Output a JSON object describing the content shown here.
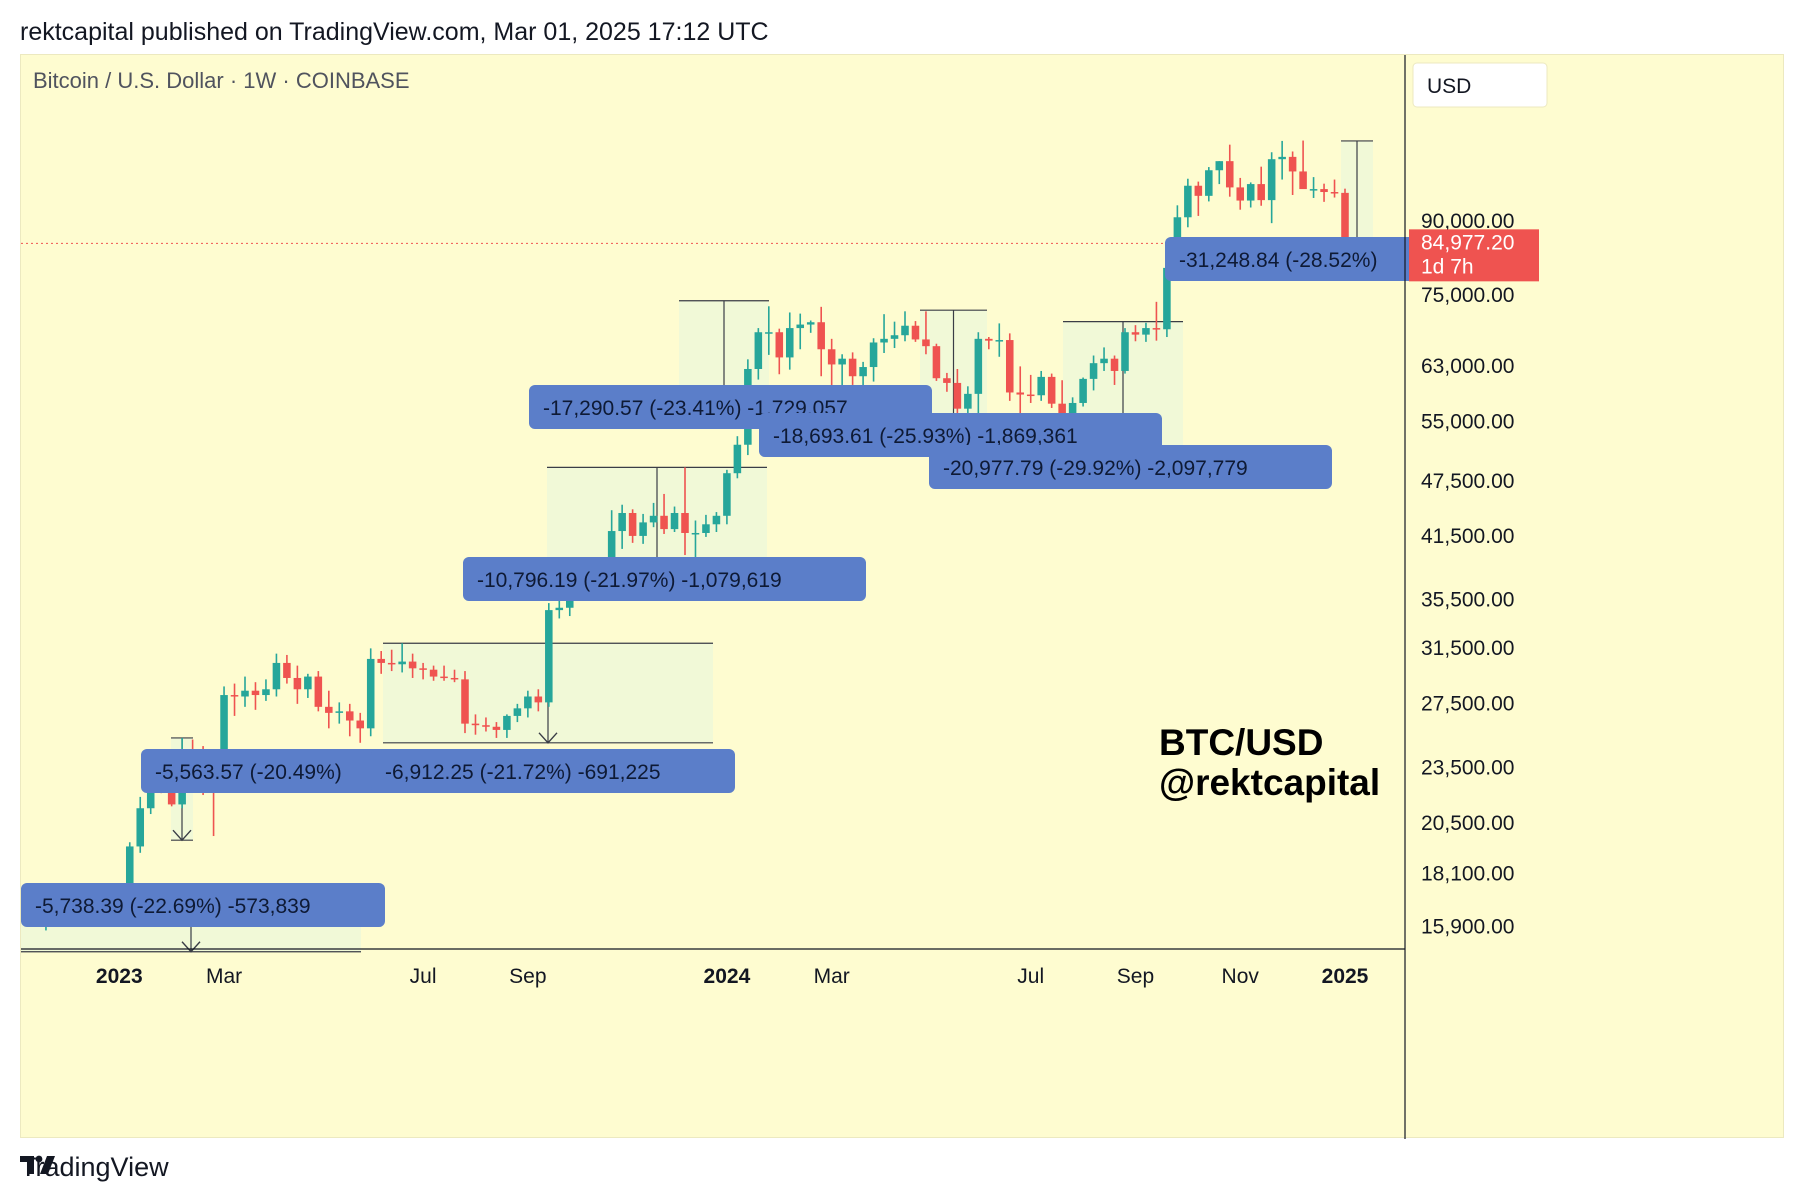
{
  "header": {
    "published": "rektcapital published on TradingView.com, Mar 01, 2025 17:12 UTC"
  },
  "footer": {
    "brand": "TradingView"
  },
  "colors": {
    "bg": "#fefcd0",
    "up": "#26a69a",
    "down": "#ef5350",
    "label_bg": "#5b7ec9",
    "label_text": "#0e1a35",
    "price_tag": "#ef5350"
  },
  "chart_data": {
    "type": "candlestick",
    "title": "Bitcoin / U.S. Dollar · 1W · COINBASE",
    "currency_button": "USD",
    "y_scale": "log",
    "ylim": [
      15000,
      135000
    ],
    "y_ticks": [
      {
        "value": 90000,
        "label": "90,000.00"
      },
      {
        "value": 75000,
        "label": "75,000.00"
      },
      {
        "value": 63000,
        "label": "63,000.00"
      },
      {
        "value": 55000,
        "label": "55,000.00"
      },
      {
        "value": 47500,
        "label": "47,500.00"
      },
      {
        "value": 41500,
        "label": "41,500.00"
      },
      {
        "value": 35500,
        "label": "35,500.00"
      },
      {
        "value": 31500,
        "label": "31,500.00"
      },
      {
        "value": 27500,
        "label": "27,500.00"
      },
      {
        "value": 23500,
        "label": "23,500.00"
      },
      {
        "value": 20500,
        "label": "20,500.00"
      },
      {
        "value": 18100,
        "label": "18,100.00"
      },
      {
        "value": 15900,
        "label": "15,900.00"
      }
    ],
    "x_ticks": [
      {
        "week": 9,
        "label": "2023",
        "bold": true
      },
      {
        "week": 19,
        "label": "Mar",
        "bold": false
      },
      {
        "week": 38,
        "label": "Jul",
        "bold": false
      },
      {
        "week": 48,
        "label": "Sep",
        "bold": false
      },
      {
        "week": 67,
        "label": "2024",
        "bold": true
      },
      {
        "week": 77,
        "label": "Mar",
        "bold": false
      },
      {
        "week": 96,
        "label": "Jul",
        "bold": false
      },
      {
        "week": 106,
        "label": "Sep",
        "bold": false
      },
      {
        "week": 116,
        "label": "Nov",
        "bold": false
      },
      {
        "week": 126,
        "label": "2025",
        "bold": true
      }
    ],
    "last_price": {
      "value": 84977.2,
      "label": "84,977.20",
      "countdown": "1d 7h"
    },
    "candles": [
      [
        16800,
        17200,
        16300,
        16500
      ],
      [
        16500,
        16900,
        16000,
        16200
      ],
      [
        16200,
        16800,
        15700,
        16500
      ],
      [
        16500,
        17100,
        16300,
        16900
      ],
      [
        16900,
        17300,
        16500,
        16800
      ],
      [
        16800,
        17000,
        16400,
        16600
      ],
      [
        16600,
        17200,
        16200,
        16900
      ],
      [
        16900,
        17500,
        16600,
        17100
      ],
      [
        17100,
        17400,
        16700,
        16800
      ],
      [
        16800,
        17300,
        16400,
        16700
      ],
      [
        16700,
        19500,
        16600,
        19300
      ],
      [
        19300,
        21800,
        19000,
        21200
      ],
      [
        21200,
        23200,
        20900,
        23000
      ],
      [
        23000,
        23800,
        22000,
        22700
      ],
      [
        22700,
        23500,
        21300,
        21400
      ],
      [
        21400,
        25200,
        21200,
        24400
      ],
      [
        24400,
        25100,
        23600,
        24100
      ],
      [
        24100,
        24700,
        21900,
        22400
      ],
      [
        22400,
        23500,
        19800,
        22300
      ],
      [
        22300,
        28600,
        22200,
        28000
      ],
      [
        28000,
        28800,
        26600,
        27900
      ],
      [
        27900,
        29300,
        27200,
        28300
      ],
      [
        28300,
        28900,
        27000,
        28000
      ],
      [
        28000,
        29100,
        27600,
        28400
      ],
      [
        28400,
        31000,
        27900,
        30300
      ],
      [
        30300,
        30900,
        28800,
        29200
      ],
      [
        29200,
        30100,
        27400,
        28400
      ],
      [
        28400,
        29500,
        27800,
        29300
      ],
      [
        29300,
        29700,
        26900,
        27200
      ],
      [
        27200,
        28300,
        25800,
        26800
      ],
      [
        26800,
        27500,
        26100,
        26900
      ],
      [
        26900,
        27400,
        25300,
        26300
      ],
      [
        26300,
        26800,
        24900,
        25800
      ],
      [
        25800,
        31400,
        25300,
        30600
      ],
      [
        30600,
        31200,
        29500,
        30300
      ],
      [
        30300,
        31300,
        29700,
        30200
      ],
      [
        30200,
        31800,
        29600,
        30400
      ],
      [
        30400,
        31000,
        29200,
        29900
      ],
      [
        29900,
        30300,
        29100,
        29800
      ],
      [
        29800,
        30100,
        29000,
        29300
      ],
      [
        29300,
        30100,
        29000,
        29200
      ],
      [
        29200,
        29800,
        28900,
        29100
      ],
      [
        29100,
        29700,
        25500,
        26100
      ],
      [
        26100,
        26700,
        25400,
        26000
      ],
      [
        26000,
        26500,
        25600,
        25900
      ],
      [
        25900,
        26200,
        25200,
        25700
      ],
      [
        25700,
        26700,
        25200,
        26600
      ],
      [
        26600,
        27400,
        26200,
        27100
      ],
      [
        27100,
        28300,
        26500,
        27900
      ],
      [
        27900,
        28400,
        26900,
        27500
      ],
      [
        27500,
        35100,
        27200,
        34500
      ],
      [
        34500,
        35900,
        33800,
        34700
      ],
      [
        34700,
        37900,
        34000,
        37400
      ],
      [
        37400,
        38500,
        35500,
        36200
      ],
      [
        36200,
        38200,
        35800,
        37700
      ],
      [
        37700,
        38800,
        37300,
        38300
      ],
      [
        38300,
        44100,
        37600,
        41900
      ],
      [
        41900,
        44700,
        40100,
        43800
      ],
      [
        43800,
        44200,
        40700,
        41400
      ],
      [
        41400,
        43700,
        40600,
        42800
      ],
      [
        42800,
        44900,
        42300,
        43500
      ],
      [
        43500,
        45900,
        41600,
        42100
      ],
      [
        42100,
        44500,
        41800,
        43800
      ],
      [
        43800,
        49000,
        39500,
        41700
      ],
      [
        41700,
        43000,
        38500,
        41700
      ],
      [
        41700,
        43600,
        41300,
        42600
      ],
      [
        42600,
        43900,
        41800,
        43500
      ],
      [
        43500,
        48700,
        42600,
        48300
      ],
      [
        48300,
        52900,
        47700,
        51800
      ],
      [
        51800,
        63900,
        50500,
        62400
      ],
      [
        62400,
        69000,
        60800,
        68300
      ],
      [
        68300,
        72800,
        64600,
        68300
      ],
      [
        68300,
        68900,
        61600,
        64200
      ],
      [
        64200,
        71700,
        62300,
        69000
      ],
      [
        69000,
        71500,
        65500,
        69600
      ],
      [
        69600,
        70300,
        68200,
        70000
      ],
      [
        70000,
        72700,
        61300,
        65500
      ],
      [
        65500,
        67200,
        59600,
        63100
      ],
      [
        63100,
        64700,
        56800,
        64000
      ],
      [
        64000,
        65000,
        60000,
        61300
      ],
      [
        61300,
        63500,
        59800,
        62700
      ],
      [
        62700,
        67300,
        60500,
        66600
      ],
      [
        66600,
        71400,
        64900,
        67200
      ],
      [
        67200,
        70100,
        65700,
        67800
      ],
      [
        67800,
        71900,
        66800,
        69400
      ],
      [
        69400,
        70200,
        66700,
        67100
      ],
      [
        67100,
        71900,
        64700,
        66000
      ],
      [
        66000,
        66400,
        60600,
        61000
      ],
      [
        61000,
        61800,
        59000,
        60300
      ],
      [
        60300,
        62400,
        55000,
        56600
      ],
      [
        56600,
        59800,
        53600,
        58700
      ],
      [
        58700,
        68300,
        55900,
        67200
      ],
      [
        67200,
        67500,
        65500,
        66900
      ],
      [
        66900,
        69800,
        64300,
        67000
      ],
      [
        67000,
        68100,
        57700,
        58900
      ],
      [
        58900,
        62800,
        49100,
        58600
      ],
      [
        58600,
        61500,
        57400,
        58500
      ],
      [
        58500,
        62100,
        57700,
        61200
      ],
      [
        61200,
        61700,
        56700,
        57300
      ],
      [
        57300,
        60700,
        52600,
        54800
      ],
      [
        54800,
        58200,
        53700,
        57400
      ],
      [
        57400,
        61100,
        56900,
        60900
      ],
      [
        60900,
        64500,
        59200,
        63300
      ],
      [
        63300,
        65800,
        62100,
        64000
      ],
      [
        64000,
        64500,
        60000,
        62100
      ],
      [
        62100,
        69000,
        61700,
        68300
      ],
      [
        68300,
        69500,
        66800,
        67900
      ],
      [
        67900,
        69900,
        66700,
        69000
      ],
      [
        69000,
        73600,
        66900,
        68800
      ],
      [
        68800,
        80300,
        67500,
        80000
      ],
      [
        80000,
        93300,
        79700,
        90600
      ],
      [
        90600,
        99600,
        88400,
        97900
      ],
      [
        97900,
        98900,
        90900,
        95500
      ],
      [
        95500,
        102500,
        94200,
        101700
      ],
      [
        101700,
        104000,
        98300,
        104000
      ],
      [
        104000,
        108300,
        95300,
        97500
      ],
      [
        97500,
        99800,
        92300,
        94400
      ],
      [
        94400,
        98700,
        92800,
        98300
      ],
      [
        98300,
        102600,
        93200,
        94500
      ],
      [
        94500,
        106300,
        89300,
        104500
      ],
      [
        104500,
        109300,
        99400,
        105100
      ],
      [
        105100,
        106500,
        95700,
        101400
      ],
      [
        101400,
        109400,
        97800,
        97100
      ],
      [
        97100,
        100000,
        95000,
        97100
      ],
      [
        97100,
        98400,
        94100,
        96400
      ],
      [
        96400,
        99400,
        95100,
        96200
      ],
      [
        96200,
        97200,
        82800,
        84977
      ]
    ],
    "drawdowns": [
      {
        "label": "-5,738.39 (-22.69%) -573,839",
        "from": 16800,
        "to": 14900
      },
      {
        "label": "-5,563.57 (-20.49%)",
        "from": 25200,
        "to": 19600
      },
      {
        "label": "-6,912.25 (-21.72%) -691,225",
        "from": 31800,
        "to": 24900
      },
      {
        "label": "-10,796.19 (-21.97%) -1,079,619",
        "from": 49000,
        "to": 38200
      },
      {
        "label": "-17,290.57 (-23.41%) -1,729,057",
        "from": 73800,
        "to": 56500
      },
      {
        "label": "-18,693.61 (-25.93%) -1,869,361",
        "from": 72100,
        "to": 53400
      },
      {
        "label": "-20,977.79 (-29.92%) -2,097,779",
        "from": 70100,
        "to": 49100
      },
      {
        "label": "-31,248.84 (-28.52%)",
        "from": 109300,
        "to": 78300
      }
    ],
    "watermark": [
      "BTC/USD",
      "@rektcapital"
    ]
  }
}
